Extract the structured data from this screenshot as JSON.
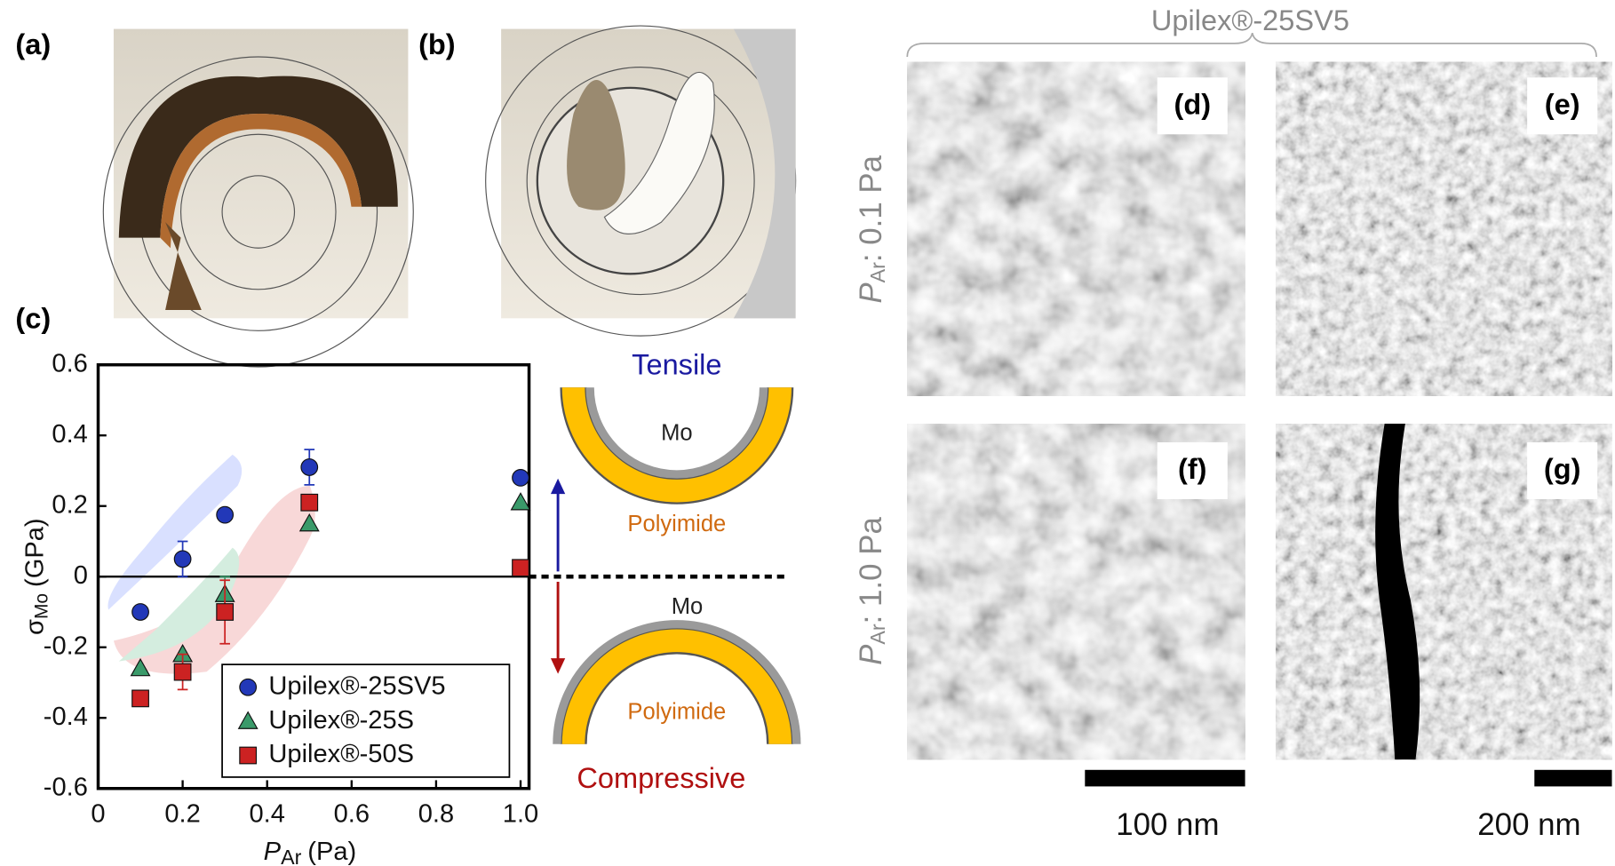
{
  "panel_labels": {
    "a": "(a)",
    "b": "(b)",
    "c": "(c)",
    "d": "(d)",
    "e": "(e)",
    "f": "(f)",
    "g": "(g)"
  },
  "chart_data": {
    "type": "scatter",
    "x_label": {
      "symbol": "P",
      "sub": "Ar",
      "unit": "(Pa)"
    },
    "y_label": {
      "symbol": "σ",
      "sub": "Mo",
      "unit": "(GPa)"
    },
    "x": [
      0.1,
      0.2,
      0.3,
      0.5,
      1.0
    ],
    "series": [
      {
        "name": "Upilex®-25SV5",
        "color": "#2238b8",
        "marker": "circle",
        "values": [
          -0.1,
          0.05,
          0.175,
          0.31,
          0.28
        ],
        "errors": [
          null,
          0.05,
          null,
          0.05,
          null
        ]
      },
      {
        "name": "Upilex®-25S",
        "color": "#3a9a6a",
        "marker": "triangle",
        "values": [
          -0.26,
          -0.22,
          -0.05,
          0.15,
          0.21
        ],
        "errors": [
          null,
          null,
          0.05,
          null,
          null
        ]
      },
      {
        "name": "Upilex®-50S",
        "color": "#cc2222",
        "marker": "square",
        "values": [
          -0.345,
          -0.27,
          -0.1,
          0.21,
          0.025
        ],
        "errors": [
          null,
          0.05,
          0.09,
          null,
          null
        ]
      }
    ],
    "xlim": [
      0,
      1.02
    ],
    "ylim": [
      -0.6,
      0.6
    ],
    "xticks": [
      0,
      0.2,
      0.4,
      0.6,
      0.8,
      {
        "value": 1,
        "label": "1.0"
      }
    ],
    "yticks": [
      0.6,
      0.4,
      0.2,
      0,
      -0.2,
      -0.4,
      -0.6
    ],
    "zero_line": true,
    "legend": "lower right"
  },
  "diagram": {
    "tensile": "Tensile",
    "compressive": "Compressive",
    "layer": "Mo",
    "substrate": "Polyimide"
  },
  "sem": {
    "title": "Upilex®-25SV5",
    "rows": [
      {
        "symbol": "P",
        "sub": "Ar",
        "text": ": 0.1 Pa"
      },
      {
        "symbol": "P",
        "sub": "Ar",
        "text": ": 1.0 Pa"
      }
    ],
    "scale_bars": [
      "100 nm",
      "200 nm"
    ]
  }
}
